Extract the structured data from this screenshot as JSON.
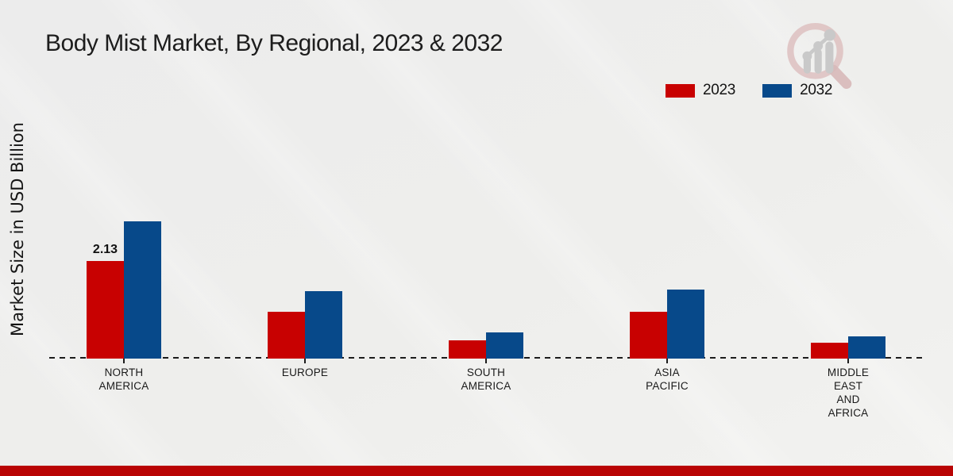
{
  "title": "Body Mist Market, By Regional, 2023 & 2032",
  "y_axis_label": "Market Size in USD Billion",
  "legend": {
    "position": "top-right",
    "items": [
      {
        "label": "2023",
        "color": "#c80101"
      },
      {
        "label": "2032",
        "color": "#07498a"
      }
    ]
  },
  "chart_data": {
    "type": "bar",
    "title": "Body Mist Market, By Regional, 2023 & 2032",
    "xlabel": "",
    "ylabel": "Market Size in USD Billion",
    "categories": [
      "NORTH AMERICA",
      "EUROPE",
      "SOUTH AMERICA",
      "ASIA PACIFIC",
      "MIDDLE EAST AND AFRICA"
    ],
    "series": [
      {
        "name": "2023",
        "color": "#c80101",
        "values": [
          2.13,
          1.02,
          0.39,
          1.03,
          0.35
        ]
      },
      {
        "name": "2032",
        "color": "#07498a",
        "values": [
          3.0,
          1.47,
          0.58,
          1.51,
          0.48
        ]
      }
    ],
    "data_labels": [
      {
        "series": "2023",
        "category": "NORTH AMERICA",
        "text": "2.13"
      }
    ],
    "ylim": [
      0,
      3.2
    ],
    "grid": false,
    "y_axis_ticks_visible": false,
    "baseline_style": "dashed",
    "legend_position": "top-right"
  },
  "colors": {
    "series_2023": "#c80101",
    "series_2032": "#07498a",
    "footer_bar": "#b90404",
    "background": "#ededeb",
    "axis": "#1c1c1c",
    "logo_ring": "#ddbfbf",
    "logo_bars": "#c9c9c9"
  },
  "icons": {
    "logo": "magnifier-bar-chart-logo"
  }
}
